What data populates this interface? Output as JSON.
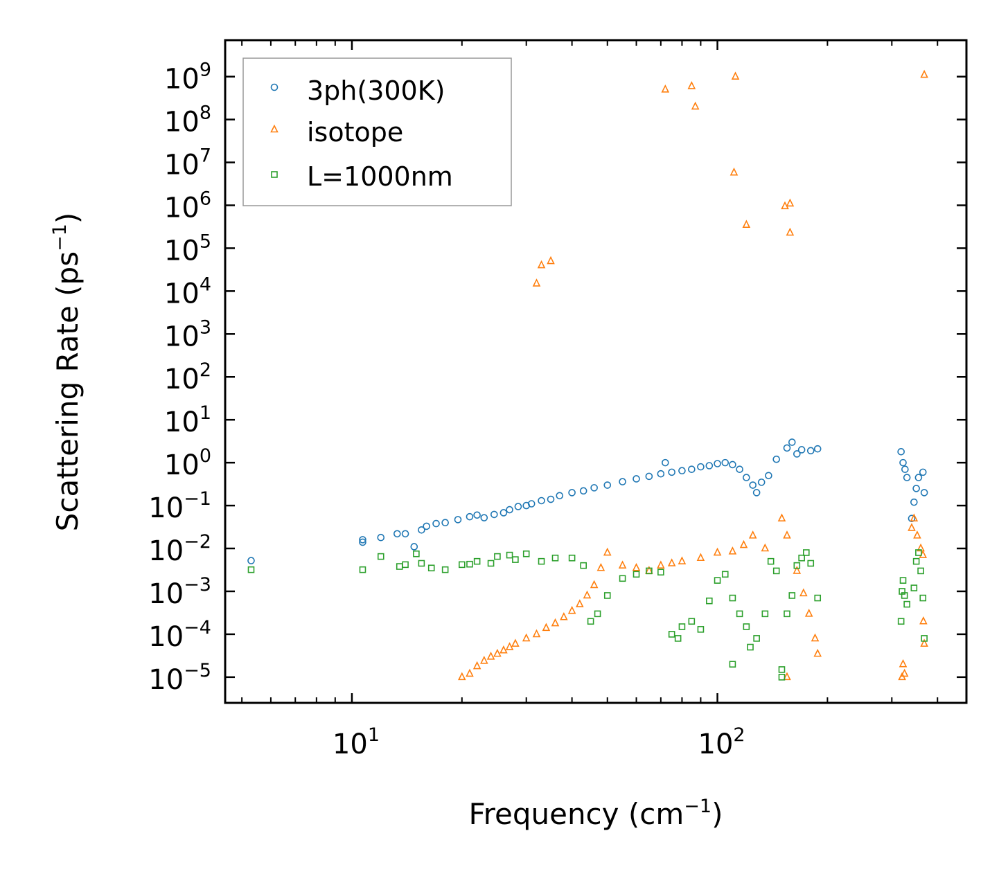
{
  "chart_data": {
    "type": "scatter",
    "xscale": "log",
    "yscale": "log",
    "xlabel": "Frequency (cm",
    "xlabel_sup": "−1",
    "xlabel_end": ")",
    "ylabel": "Scattering Rate (ps",
    "ylabel_sup": "−1",
    "ylabel_end": ")",
    "xlim": [
      4.5,
      480
    ],
    "ylim_exp": [
      -5.6,
      9.85
    ],
    "x_ticks": [
      {
        "value": 10,
        "base": "10",
        "exp": "1"
      },
      {
        "value": 100,
        "base": "10",
        "exp": "2"
      }
    ],
    "y_ticks": [
      {
        "exp_value": -5,
        "base": "10",
        "exp": "−5"
      },
      {
        "exp_value": -4,
        "base": "10",
        "exp": "−4"
      },
      {
        "exp_value": -3,
        "base": "10",
        "exp": "−3"
      },
      {
        "exp_value": -2,
        "base": "10",
        "exp": "−2"
      },
      {
        "exp_value": -1,
        "base": "10",
        "exp": "−1"
      },
      {
        "exp_value": 0,
        "base": "10",
        "exp": "0"
      },
      {
        "exp_value": 1,
        "base": "10",
        "exp": "1"
      },
      {
        "exp_value": 2,
        "base": "10",
        "exp": "2"
      },
      {
        "exp_value": 3,
        "base": "10",
        "exp": "3"
      },
      {
        "exp_value": 4,
        "base": "10",
        "exp": "4"
      },
      {
        "exp_value": 5,
        "base": "10",
        "exp": "5"
      },
      {
        "exp_value": 6,
        "base": "10",
        "exp": "6"
      },
      {
        "exp_value": 7,
        "base": "10",
        "exp": "7"
      },
      {
        "exp_value": 8,
        "base": "10",
        "exp": "8"
      },
      {
        "exp_value": 9,
        "base": "10",
        "exp": "9"
      }
    ],
    "legend_position": "upper-left",
    "series": [
      {
        "name": "3ph(300K)",
        "marker": "circle",
        "color": "#1f77b4",
        "points": [
          [
            5.3,
            0.0052
          ],
          [
            10.7,
            0.016
          ],
          [
            10.7,
            0.014
          ],
          [
            12,
            0.018
          ],
          [
            13.3,
            0.022
          ],
          [
            14,
            0.022
          ],
          [
            14.8,
            0.011
          ],
          [
            15.5,
            0.027
          ],
          [
            16,
            0.033
          ],
          [
            17,
            0.038
          ],
          [
            18,
            0.04
          ],
          [
            19.5,
            0.047
          ],
          [
            21,
            0.055
          ],
          [
            22,
            0.06
          ],
          [
            23,
            0.052
          ],
          [
            24.5,
            0.062
          ],
          [
            26,
            0.068
          ],
          [
            27,
            0.08
          ],
          [
            28.5,
            0.095
          ],
          [
            30,
            0.1
          ],
          [
            31,
            0.11
          ],
          [
            33,
            0.13
          ],
          [
            35,
            0.14
          ],
          [
            37,
            0.17
          ],
          [
            40,
            0.2
          ],
          [
            43,
            0.22
          ],
          [
            46,
            0.26
          ],
          [
            50,
            0.3
          ],
          [
            55,
            0.36
          ],
          [
            60,
            0.42
          ],
          [
            65,
            0.48
          ],
          [
            70,
            0.55
          ],
          [
            72,
            1.0
          ],
          [
            75,
            0.6
          ],
          [
            80,
            0.65
          ],
          [
            85,
            0.7
          ],
          [
            90,
            0.8
          ],
          [
            95,
            0.85
          ],
          [
            100,
            0.95
          ],
          [
            105,
            1.0
          ],
          [
            110,
            0.9
          ],
          [
            115,
            0.7
          ],
          [
            120,
            0.45
          ],
          [
            125,
            0.3
          ],
          [
            128,
            0.2
          ],
          [
            132,
            0.35
          ],
          [
            138,
            0.5
          ],
          [
            145,
            1.2
          ],
          [
            155,
            2.2
          ],
          [
            160,
            3.0
          ],
          [
            165,
            1.6
          ],
          [
            170,
            2.0
          ],
          [
            180,
            1.9
          ],
          [
            188,
            2.1
          ],
          [
            318,
            1.8
          ],
          [
            322,
            1.0
          ],
          [
            326,
            0.7
          ],
          [
            330,
            0.45
          ],
          [
            340,
            0.05
          ],
          [
            345,
            0.12
          ],
          [
            350,
            0.25
          ],
          [
            355,
            0.45
          ],
          [
            365,
            0.6
          ],
          [
            368,
            0.2
          ]
        ]
      },
      {
        "name": "isotope",
        "marker": "triangle",
        "color": "#ff7f0e",
        "points": [
          [
            20,
            1e-05
          ],
          [
            21,
            1.2e-05
          ],
          [
            22,
            1.8e-05
          ],
          [
            23,
            2.4e-05
          ],
          [
            24,
            3e-05
          ],
          [
            25,
            3.5e-05
          ],
          [
            26,
            4.2e-05
          ],
          [
            27,
            5e-05
          ],
          [
            28,
            6e-05
          ],
          [
            30,
            8e-05
          ],
          [
            32,
            0.0001
          ],
          [
            34,
            0.00014
          ],
          [
            36,
            0.00018
          ],
          [
            38,
            0.00025
          ],
          [
            40,
            0.00035
          ],
          [
            42,
            0.0005
          ],
          [
            44,
            0.0008
          ],
          [
            46,
            0.0014
          ],
          [
            48,
            0.0035
          ],
          [
            50,
            0.008
          ],
          [
            55,
            0.004
          ],
          [
            60,
            0.0035
          ],
          [
            65,
            0.003
          ],
          [
            70,
            0.004
          ],
          [
            75,
            0.0045
          ],
          [
            80,
            0.005
          ],
          [
            90,
            0.006
          ],
          [
            100,
            0.008
          ],
          [
            110,
            0.0085
          ],
          [
            118,
            0.012
          ],
          [
            125,
            0.02
          ],
          [
            135,
            0.01
          ],
          [
            150,
            0.05
          ],
          [
            155,
            0.02
          ],
          [
            165,
            0.003
          ],
          [
            172,
            0.0009
          ],
          [
            178,
            0.0003
          ],
          [
            185,
            8e-05
          ],
          [
            188,
            3.5e-05
          ],
          [
            32,
            15000
          ],
          [
            33,
            40000
          ],
          [
            35,
            50000
          ],
          [
            72,
            500000000
          ],
          [
            85,
            600000000
          ],
          [
            87,
            200000000
          ],
          [
            112,
            1000000000
          ],
          [
            111,
            5800000
          ],
          [
            120,
            350000
          ],
          [
            153,
            950000
          ],
          [
            158,
            1100000
          ],
          [
            158,
            230000
          ],
          [
            368,
            1100000000
          ],
          [
            320,
            1e-05
          ],
          [
            322,
            2e-05
          ],
          [
            325,
            1.2e-05
          ],
          [
            340,
            0.03
          ],
          [
            345,
            0.05
          ],
          [
            352,
            0.02
          ],
          [
            360,
            0.01
          ],
          [
            365,
            0.007
          ],
          [
            366,
            0.0002
          ],
          [
            368,
            6e-05
          ],
          [
            155,
            1e-05
          ]
        ]
      },
      {
        "name": "L=1000nm",
        "marker": "square",
        "color": "#2ca02c",
        "points": [
          [
            5.3,
            0.0032
          ],
          [
            10.7,
            0.0032
          ],
          [
            12,
            0.0065
          ],
          [
            13.5,
            0.0038
          ],
          [
            14,
            0.0042
          ],
          [
            15,
            0.0075
          ],
          [
            15.5,
            0.0045
          ],
          [
            16.5,
            0.0035
          ],
          [
            18,
            0.0032
          ],
          [
            20,
            0.0042
          ],
          [
            21,
            0.0043
          ],
          [
            22,
            0.005
          ],
          [
            24,
            0.0045
          ],
          [
            25,
            0.0065
          ],
          [
            27,
            0.007
          ],
          [
            28,
            0.0055
          ],
          [
            30,
            0.0075
          ],
          [
            33,
            0.005
          ],
          [
            36,
            0.006
          ],
          [
            40,
            0.006
          ],
          [
            43,
            0.004
          ],
          [
            45,
            0.0002
          ],
          [
            47,
            0.0003
          ],
          [
            50,
            0.0008
          ],
          [
            55,
            0.002
          ],
          [
            60,
            0.0025
          ],
          [
            65,
            0.003
          ],
          [
            70,
            0.0028
          ],
          [
            75,
            0.0001
          ],
          [
            78,
            8e-05
          ],
          [
            80,
            0.00015
          ],
          [
            85,
            0.0002
          ],
          [
            90,
            0.00013
          ],
          [
            95,
            0.0006
          ],
          [
            100,
            0.0018
          ],
          [
            105,
            0.0025
          ],
          [
            110,
            0.0007
          ],
          [
            115,
            0.0003
          ],
          [
            120,
            0.00015
          ],
          [
            123,
            5e-05
          ],
          [
            128,
            8e-05
          ],
          [
            135,
            0.0003
          ],
          [
            140,
            0.005
          ],
          [
            145,
            0.003
          ],
          [
            150,
            1e-05
          ],
          [
            155,
            0.0003
          ],
          [
            160,
            0.0008
          ],
          [
            165,
            0.004
          ],
          [
            170,
            0.006
          ],
          [
            175,
            0.008
          ],
          [
            180,
            0.0045
          ],
          [
            188,
            0.0007
          ],
          [
            110,
            2e-05
          ],
          [
            150,
            1.5e-05
          ],
          [
            318,
            0.0002
          ],
          [
            320,
            0.001
          ],
          [
            322,
            0.0018
          ],
          [
            325,
            0.0008
          ],
          [
            330,
            0.0005
          ],
          [
            345,
            0.0012
          ],
          [
            350,
            0.005
          ],
          [
            355,
            0.008
          ],
          [
            360,
            0.003
          ],
          [
            365,
            0.0007
          ],
          [
            368,
            8e-05
          ]
        ]
      }
    ]
  }
}
